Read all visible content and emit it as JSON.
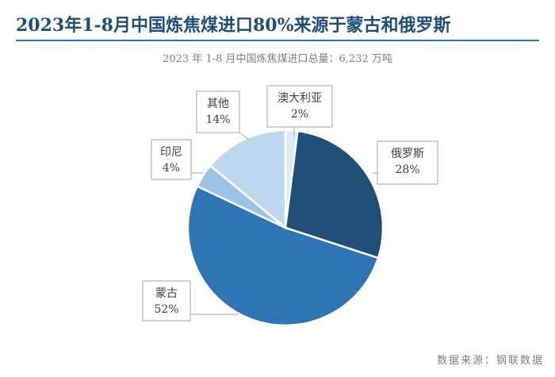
{
  "title": "2023年1-8月中国炼焦煤进口80%来源于蒙古和俄罗斯",
  "subtitle": "2023 年 1-8 月中国炼焦煤进口总量：6,232 万吨",
  "source": "数据来源：钢联数据",
  "chart_data": {
    "type": "pie",
    "title": "2023年1-8月中国炼焦煤进口80%来源于蒙古和俄罗斯",
    "subtitle": "2023 年 1-8 月中国炼焦煤进口总量：6,232 万吨",
    "slices": [
      {
        "label": "澳大利亚",
        "value": 2,
        "value_label": "2%",
        "color": "#dde9f5"
      },
      {
        "label": "俄罗斯",
        "value": 28,
        "value_label": "28%",
        "color": "#1f4e79"
      },
      {
        "label": "蒙古",
        "value": 52,
        "value_label": "52%",
        "color": "#2e75b6"
      },
      {
        "label": "印尼",
        "value": 4,
        "value_label": "4%",
        "color": "#9dc3e6"
      },
      {
        "label": "其他",
        "value": 14,
        "value_label": "14%",
        "color": "#bdd7ee"
      }
    ],
    "start_angle_deg": 0,
    "direction": "clockwise",
    "legend": "none"
  }
}
